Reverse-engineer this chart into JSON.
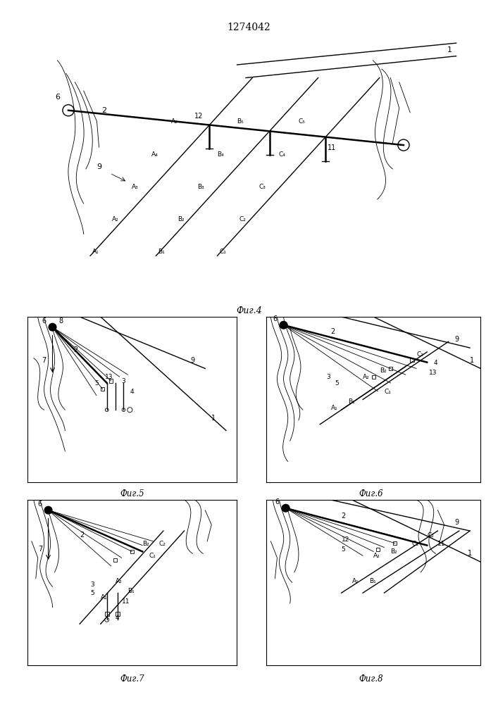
{
  "title": "1274042",
  "fig4_caption": "Фиг.4",
  "fig5_caption": "Фиг.5",
  "fig6_caption": "Фиг.6",
  "fig7_caption": "Фиг.7",
  "fig8_caption": "Фиг.8",
  "bg_color": "#ffffff",
  "line_color": "#000000",
  "lw_thin": 0.6,
  "lw_medium": 1.0,
  "lw_thick": 1.8
}
